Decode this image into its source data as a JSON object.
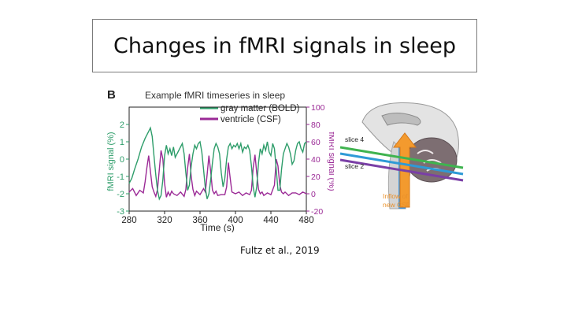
{
  "slide": {
    "title": "Changes in fMRI signals in sleep",
    "citation": "Fultz et al., 2019"
  },
  "chart_data": {
    "type": "line",
    "panel_label": "B",
    "title": "Example fMRI timeseries in sleep",
    "xlabel": "Time (s)",
    "ylabel_left": "fMRI signal (%)",
    "ylabel_right": "fMRI signal (%)",
    "xlim": [
      280,
      480
    ],
    "ylim_left": [
      -3,
      3
    ],
    "ylim_right": [
      -20,
      100
    ],
    "x_ticks": [
      280,
      320,
      360,
      400,
      440,
      480
    ],
    "y_ticks_left": [
      -3,
      -2,
      -1,
      0,
      1,
      2
    ],
    "y_ticks_right": [
      -20,
      0,
      20,
      40,
      60,
      80,
      100
    ],
    "legend_position": "top-right",
    "grid": false,
    "series": [
      {
        "name": "gray matter (BOLD)",
        "axis": "left",
        "color": "#2e9d6a",
        "x": [
          280,
          283,
          286,
          290,
          294,
          298,
          302,
          304,
          306,
          308,
          310,
          312,
          314,
          316,
          318,
          320,
          322,
          324,
          326,
          328,
          330,
          332,
          336,
          340,
          342,
          344,
          346,
          348,
          350,
          352,
          354,
          356,
          358,
          360,
          362,
          364,
          366,
          368,
          370,
          372,
          374,
          376,
          378,
          380,
          382,
          384,
          386,
          388,
          390,
          392,
          394,
          396,
          398,
          400,
          402,
          404,
          406,
          408,
          410,
          412,
          414,
          416,
          418,
          420,
          422,
          424,
          426,
          428,
          430,
          432,
          434,
          436,
          438,
          440,
          442,
          444,
          446,
          448,
          450,
          452,
          454,
          456,
          458,
          460,
          462,
          464,
          466,
          468,
          470,
          472,
          474,
          476,
          478,
          480
        ],
        "y": [
          -1.4,
          -1.1,
          -0.6,
          0,
          0.7,
          1.2,
          1.6,
          1.8,
          1.3,
          0.2,
          -0.9,
          -1.8,
          -2.3,
          -2.1,
          -1.2,
          0.2,
          0.8,
          0.3,
          0.6,
          0.2,
          0.7,
          0.1,
          0.5,
          0.9,
          0.3,
          -0.8,
          -1.8,
          -1.5,
          -0.4,
          0.3,
          0.8,
          0.6,
          0.9,
          1.0,
          0.4,
          -0.6,
          -1.7,
          -2.3,
          -2.0,
          -1.2,
          -0.2,
          0.6,
          0.9,
          0.7,
          0.3,
          -0.8,
          -1.6,
          -1.1,
          0.0,
          0.7,
          0.9,
          0.6,
          0.8,
          0.7,
          0.9,
          0.6,
          0.9,
          0.4,
          0.7,
          0.6,
          0.8,
          0.5,
          -0.4,
          -1.6,
          -2.2,
          -1.6,
          -0.2,
          0.6,
          0.3,
          0.8,
          0.5,
          1.0,
          0.4,
          0.2,
          0.9,
          0.6,
          -0.6,
          -1.8,
          -1.8,
          -0.6,
          0.3,
          0.6,
          0.9,
          0.7,
          0.3,
          -0.3,
          -0.1,
          0.5,
          0.9,
          1.0,
          0.6,
          0.4,
          0.9,
          1.0
        ]
      },
      {
        "name": "ventricle (CSF)",
        "axis": "right",
        "color": "#9b2a96",
        "x": [
          280,
          284,
          288,
          292,
          296,
          298,
          300,
          302,
          304,
          306,
          308,
          310,
          312,
          314,
          316,
          318,
          320,
          322,
          324,
          326,
          328,
          330,
          334,
          338,
          342,
          344,
          346,
          348,
          350,
          352,
          354,
          356,
          360,
          364,
          366,
          368,
          370,
          372,
          374,
          376,
          378,
          380,
          384,
          388,
          390,
          392,
          394,
          396,
          400,
          404,
          408,
          412,
          416,
          418,
          420,
          422,
          424,
          426,
          428,
          430,
          432,
          436,
          440,
          444,
          446,
          448,
          450,
          452,
          454,
          456,
          460,
          464,
          468,
          472,
          476,
          480
        ],
        "y": [
          2,
          6,
          -2,
          4,
          1,
          14,
          30,
          44,
          26,
          8,
          2,
          -3,
          5,
          28,
          50,
          40,
          12,
          -4,
          2,
          -2,
          3,
          0,
          -2,
          2,
          -3,
          5,
          30,
          46,
          20,
          5,
          -2,
          3,
          -1,
          6,
          2,
          22,
          44,
          26,
          4,
          0,
          3,
          -2,
          -1,
          -1,
          8,
          36,
          18,
          2,
          0,
          2,
          -2,
          1,
          -1,
          4,
          30,
          45,
          24,
          5,
          0,
          2,
          -2,
          1,
          -1,
          10,
          40,
          32,
          10,
          2,
          0,
          2,
          -2,
          1,
          1,
          -1,
          2,
          0
        ]
      }
    ]
  },
  "brain_diagram": {
    "label_slice4": "slice 4",
    "label_slice2": "slice 2",
    "annotation_line1": "Inflow of",
    "annotation_line2": "new CSF"
  }
}
